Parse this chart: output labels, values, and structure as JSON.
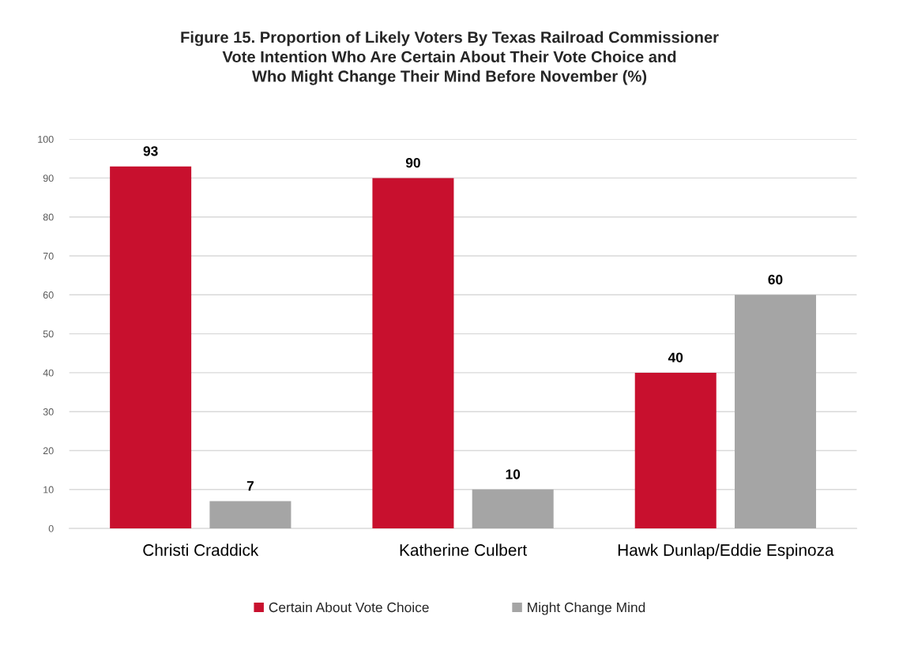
{
  "chart_data": {
    "type": "bar",
    "title": "Figure 15. Proportion of Likely Voters By Texas Railroad Commissioner\nVote Intention Who Are Certain About Their Vote Choice and\nWho Might Change Their Mind Before November (%)",
    "categories": [
      "Christi Craddick",
      "Katherine Culbert",
      "Hawk Dunlap/Eddie Espinoza"
    ],
    "series": [
      {
        "name": "Certain About Vote Choice",
        "color": "#c8102e",
        "values": [
          93,
          90,
          40
        ]
      },
      {
        "name": "Might Change Mind",
        "color": "#a5a5a5",
        "values": [
          7,
          10,
          60
        ]
      }
    ],
    "ylim": [
      0,
      100
    ],
    "yticks": [
      0,
      10,
      20,
      30,
      40,
      50,
      60,
      70,
      80,
      90,
      100
    ],
    "grid": "y",
    "legend": "bottom",
    "data_labels": true
  }
}
